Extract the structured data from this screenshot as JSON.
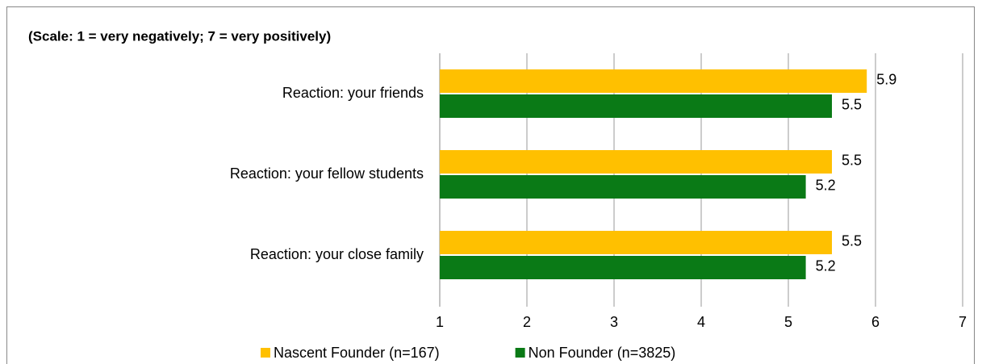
{
  "chart_data": {
    "type": "barh",
    "title": "(Scale: 1 = very negatively; 7 = very positively)",
    "categories": [
      "Reaction: your friends",
      "Reaction: your fellow students",
      "Reaction: your close family"
    ],
    "series": [
      {
        "name": "Nascent Founder (n=167)",
        "color": "#ffc000",
        "values": [
          5.9,
          5.5,
          5.5
        ]
      },
      {
        "name": "Non Founder (n=3825)",
        "color": "#0a7a16",
        "values": [
          5.5,
          5.2,
          5.2
        ]
      }
    ],
    "xlim": [
      1,
      7
    ],
    "xticks": [
      1,
      2,
      3,
      4,
      5,
      6,
      7
    ],
    "grid": true,
    "legend": "bottom"
  }
}
